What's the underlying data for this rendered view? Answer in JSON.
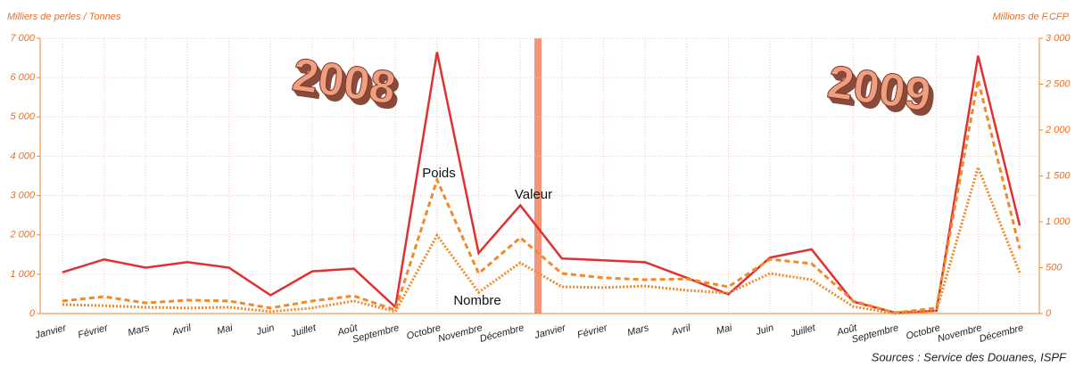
{
  "chart_data": {
    "type": "line",
    "y_label": "Milliers de perles / Tonnes",
    "y2_label": "Millions de F.CFP",
    "source": "Sources : Service des Douanes, ISPF",
    "annotations": [
      "2008",
      "2009"
    ],
    "categories": [
      "Janvier",
      "Février",
      "Mars",
      "Avril",
      "Mai",
      "Juin",
      "Juillet",
      "Août",
      "Septembre",
      "Octobre",
      "Novembre",
      "Décembre",
      "Janvier",
      "Février",
      "Mars",
      "Avril",
      "Mai",
      "Juin",
      "Juillet",
      "Août",
      "Septembre",
      "Octobre",
      "Novembre",
      "Décembre"
    ],
    "series": [
      {
        "name": "Valeur",
        "color": "#e03030",
        "style": "solid",
        "axis": "y2",
        "values": [
          450,
          590,
          500,
          560,
          500,
          200,
          460,
          490,
          70,
          2850,
          660,
          1180,
          600,
          580,
          560,
          390,
          210,
          610,
          700,
          130,
          10,
          30,
          2810,
          960
        ]
      },
      {
        "name": "Poids",
        "color": "#f08a2c",
        "style": "dashed",
        "values": [
          320,
          430,
          270,
          340,
          320,
          140,
          320,
          450,
          90,
          3400,
          1020,
          1930,
          1020,
          910,
          860,
          880,
          680,
          1380,
          1270,
          320,
          20,
          140,
          5940,
          1650
        ]
      },
      {
        "name": "Nombre",
        "color": "#f08a2c",
        "style": "dotted",
        "values": [
          230,
          200,
          160,
          140,
          160,
          50,
          140,
          320,
          50,
          1990,
          540,
          1290,
          680,
          660,
          700,
          590,
          520,
          1020,
          860,
          180,
          0,
          70,
          3720,
          1040
        ]
      }
    ],
    "ylim": [
      0,
      7000
    ],
    "yticks": [
      0,
      {
        "value": 1000,
        "label": "1 000"
      },
      {
        "value": 2000,
        "label": "2 000"
      },
      {
        "value": 3000,
        "label": "3 000"
      },
      {
        "value": 4000,
        "label": "4 000"
      },
      {
        "value": 5000,
        "label": "5 000"
      },
      {
        "value": 6000,
        "label": "6 000"
      },
      {
        "value": 7000,
        "label": "7 000"
      }
    ],
    "y2lim": [
      0,
      3000
    ],
    "y2ticks": [
      0,
      500,
      {
        "value": 1000,
        "label": "1 000"
      },
      {
        "value": 1500,
        "label": "1 500"
      },
      {
        "value": 2000,
        "label": "2 000"
      },
      {
        "value": 2500,
        "label": "2 500"
      },
      {
        "value": 3000,
        "label": "3 000"
      }
    ],
    "grid": true
  }
}
